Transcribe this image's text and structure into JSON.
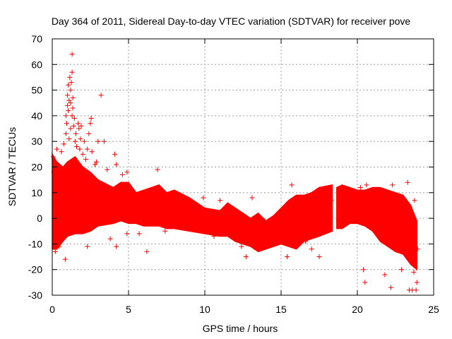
{
  "chart_data": {
    "type": "scatter",
    "title": "Day 364 of 2011, Sidereal Day-to-day VTEC variation (SDTVAR) for receiver pove",
    "xlabel": "GPS time / hours",
    "ylabel": "SDTVAR / TECUs",
    "xlim": [
      0,
      25
    ],
    "ylim": [
      -30,
      70
    ],
    "xticks": [
      0,
      5,
      10,
      15,
      20,
      25
    ],
    "yticks": [
      -30,
      -20,
      -10,
      0,
      10,
      20,
      30,
      40,
      50,
      60,
      70
    ],
    "grid": true,
    "marker": "+",
    "color": "#ff0000",
    "gaps": [
      [
        18.35,
        18.65
      ],
      [
        24.0,
        25.0
      ]
    ],
    "envelope": [
      {
        "x": 0.0,
        "upper": 25,
        "lower": -12
      },
      {
        "x": 0.3,
        "upper": 22,
        "lower": -12
      },
      {
        "x": 0.7,
        "upper": 20,
        "lower": -9
      },
      {
        "x": 1.0,
        "upper": 22,
        "lower": -7
      },
      {
        "x": 1.5,
        "upper": 24,
        "lower": -6
      },
      {
        "x": 2.0,
        "upper": 20,
        "lower": -6
      },
      {
        "x": 2.5,
        "upper": 18,
        "lower": -5
      },
      {
        "x": 3.0,
        "upper": 15,
        "lower": -3
      },
      {
        "x": 4.0,
        "upper": 12,
        "lower": -2
      },
      {
        "x": 4.5,
        "upper": 14,
        "lower": -1
      },
      {
        "x": 5.0,
        "upper": 14,
        "lower": -2
      },
      {
        "x": 5.5,
        "upper": 10,
        "lower": -2
      },
      {
        "x": 6.0,
        "upper": 11,
        "lower": -3
      },
      {
        "x": 7.0,
        "upper": 13,
        "lower": -3
      },
      {
        "x": 7.5,
        "upper": 10,
        "lower": -4
      },
      {
        "x": 8.0,
        "upper": 11,
        "lower": -4
      },
      {
        "x": 9.0,
        "upper": 8,
        "lower": -5
      },
      {
        "x": 10.0,
        "upper": 4,
        "lower": -6
      },
      {
        "x": 11.0,
        "upper": 3,
        "lower": -7
      },
      {
        "x": 11.5,
        "upper": 6,
        "lower": -7
      },
      {
        "x": 12.0,
        "upper": 4,
        "lower": -9
      },
      {
        "x": 13.0,
        "upper": 0,
        "lower": -11
      },
      {
        "x": 13.5,
        "upper": 2,
        "lower": -13
      },
      {
        "x": 14.0,
        "upper": -1,
        "lower": -12
      },
      {
        "x": 14.5,
        "upper": 1,
        "lower": -11
      },
      {
        "x": 15.0,
        "upper": 4,
        "lower": -10
      },
      {
        "x": 15.5,
        "upper": 7,
        "lower": -11
      },
      {
        "x": 16.0,
        "upper": 9,
        "lower": -12
      },
      {
        "x": 16.5,
        "upper": 9,
        "lower": -9
      },
      {
        "x": 17.0,
        "upper": 10,
        "lower": -8
      },
      {
        "x": 17.5,
        "upper": 12,
        "lower": -7
      },
      {
        "x": 18.35,
        "upper": 13,
        "lower": -5
      },
      {
        "x": 18.65,
        "upper": 12,
        "lower": -4
      },
      {
        "x": 19.0,
        "upper": 13,
        "lower": -4
      },
      {
        "x": 19.5,
        "upper": 12,
        "lower": -2
      },
      {
        "x": 20.0,
        "upper": 11,
        "lower": -2
      },
      {
        "x": 20.5,
        "upper": 11,
        "lower": -3
      },
      {
        "x": 21.0,
        "upper": 12,
        "lower": -5
      },
      {
        "x": 21.5,
        "upper": 12,
        "lower": -9
      },
      {
        "x": 22.0,
        "upper": 11,
        "lower": -11
      },
      {
        "x": 22.5,
        "upper": 10,
        "lower": -13
      },
      {
        "x": 23.0,
        "upper": 9,
        "lower": -14
      },
      {
        "x": 23.5,
        "upper": 5,
        "lower": -18
      },
      {
        "x": 23.9,
        "upper": -1,
        "lower": -20
      }
    ],
    "outliers": [
      {
        "x": 0.05,
        "y": 24
      },
      {
        "x": 0.1,
        "y": 18
      },
      {
        "x": 0.2,
        "y": -13
      },
      {
        "x": 0.3,
        "y": 27
      },
      {
        "x": 0.45,
        "y": -11
      },
      {
        "x": 0.6,
        "y": 26
      },
      {
        "x": 0.75,
        "y": 29
      },
      {
        "x": 0.85,
        "y": -16
      },
      {
        "x": 0.9,
        "y": 33
      },
      {
        "x": 0.9,
        "y": 40
      },
      {
        "x": 0.95,
        "y": 37
      },
      {
        "x": 1.0,
        "y": 44
      },
      {
        "x": 1.0,
        "y": 48
      },
      {
        "x": 1.05,
        "y": 42
      },
      {
        "x": 1.05,
        "y": 52
      },
      {
        "x": 1.1,
        "y": 46
      },
      {
        "x": 1.1,
        "y": 31
      },
      {
        "x": 1.15,
        "y": 55
      },
      {
        "x": 1.2,
        "y": 50
      },
      {
        "x": 1.2,
        "y": 45
      },
      {
        "x": 1.2,
        "y": 35
      },
      {
        "x": 1.25,
        "y": 53
      },
      {
        "x": 1.3,
        "y": 57
      },
      {
        "x": 1.3,
        "y": 40
      },
      {
        "x": 1.3,
        "y": 64
      },
      {
        "x": 1.35,
        "y": 47
      },
      {
        "x": 1.35,
        "y": 43
      },
      {
        "x": 1.4,
        "y": 36
      },
      {
        "x": 1.45,
        "y": 39
      },
      {
        "x": 1.5,
        "y": 30
      },
      {
        "x": 1.55,
        "y": 33
      },
      {
        "x": 1.6,
        "y": 28
      },
      {
        "x": 1.7,
        "y": 37
      },
      {
        "x": 1.75,
        "y": 35
      },
      {
        "x": 1.8,
        "y": 27
      },
      {
        "x": 1.85,
        "y": 31
      },
      {
        "x": 1.9,
        "y": 36
      },
      {
        "x": 2.0,
        "y": 25
      },
      {
        "x": 2.1,
        "y": 30
      },
      {
        "x": 2.2,
        "y": 23
      },
      {
        "x": 2.3,
        "y": 27
      },
      {
        "x": 2.4,
        "y": 33
      },
      {
        "x": 2.5,
        "y": 37
      },
      {
        "x": 2.55,
        "y": 39
      },
      {
        "x": 2.6,
        "y": 26
      },
      {
        "x": 2.8,
        "y": 21
      },
      {
        "x": 2.9,
        "y": 22
      },
      {
        "x": 3.0,
        "y": 30
      },
      {
        "x": 3.2,
        "y": 48
      },
      {
        "x": 3.4,
        "y": 30
      },
      {
        "x": 3.6,
        "y": 19
      },
      {
        "x": 4.1,
        "y": 25
      },
      {
        "x": 4.2,
        "y": 21
      },
      {
        "x": 4.6,
        "y": 17
      },
      {
        "x": 4.9,
        "y": 18
      },
      {
        "x": 2.3,
        "y": -11
      },
      {
        "x": 3.8,
        "y": -8
      },
      {
        "x": 4.2,
        "y": -11
      },
      {
        "x": 4.9,
        "y": -6
      },
      {
        "x": 5.7,
        "y": -6
      },
      {
        "x": 6.2,
        "y": -13
      },
      {
        "x": 6.9,
        "y": 19
      },
      {
        "x": 7.4,
        "y": -5
      },
      {
        "x": 9.2,
        "y": -2
      },
      {
        "x": 9.9,
        "y": 8
      },
      {
        "x": 10.6,
        "y": -7
      },
      {
        "x": 11.0,
        "y": 7
      },
      {
        "x": 12.4,
        "y": -11
      },
      {
        "x": 12.7,
        "y": -15
      },
      {
        "x": 13.1,
        "y": 8
      },
      {
        "x": 13.6,
        "y": 0
      },
      {
        "x": 15.4,
        "y": -15
      },
      {
        "x": 15.7,
        "y": 13
      },
      {
        "x": 16.2,
        "y": -8
      },
      {
        "x": 16.6,
        "y": -9
      },
      {
        "x": 17.0,
        "y": -12
      },
      {
        "x": 17.5,
        "y": -15
      },
      {
        "x": 18.2,
        "y": 5
      },
      {
        "x": 18.3,
        "y": 7
      },
      {
        "x": 20.2,
        "y": 12
      },
      {
        "x": 20.4,
        "y": -20
      },
      {
        "x": 20.5,
        "y": -25
      },
      {
        "x": 20.6,
        "y": 13
      },
      {
        "x": 20.9,
        "y": 4
      },
      {
        "x": 21.3,
        "y": -1
      },
      {
        "x": 21.8,
        "y": -22
      },
      {
        "x": 22.2,
        "y": -27
      },
      {
        "x": 22.3,
        "y": 13
      },
      {
        "x": 22.9,
        "y": -20
      },
      {
        "x": 23.3,
        "y": 14
      },
      {
        "x": 23.4,
        "y": -28
      },
      {
        "x": 23.6,
        "y": -28
      },
      {
        "x": 23.7,
        "y": -21
      },
      {
        "x": 23.75,
        "y": 7
      },
      {
        "x": 23.85,
        "y": -28
      },
      {
        "x": 23.9,
        "y": -25
      },
      {
        "x": 23.95,
        "y": -12
      }
    ]
  }
}
